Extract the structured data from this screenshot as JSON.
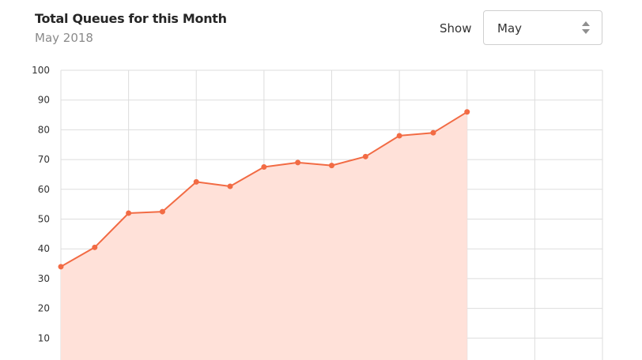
{
  "header": {
    "title": "Total Queues for this Month",
    "subtitle": "May 2018"
  },
  "filter": {
    "label": "Show",
    "selected_month": "May",
    "icon": "updown-arrows-icon"
  },
  "colors": {
    "line": "#f26b44",
    "fill": "#ffe1d9",
    "grid": "#dddddd"
  },
  "chart_data": {
    "type": "area",
    "title": "Total Queues for this Month",
    "subtitle": "May 2018",
    "xlabel": "",
    "ylabel": "",
    "ylim": [
      0,
      100
    ],
    "yticks": [
      10,
      20,
      30,
      40,
      50,
      60,
      70,
      80,
      90,
      100
    ],
    "x": [
      0,
      1,
      2,
      3,
      4,
      5,
      6,
      7,
      8,
      9,
      10,
      11,
      12
    ],
    "xlim": [
      0,
      16
    ],
    "values": [
      34,
      40.5,
      52,
      52.5,
      62.5,
      61,
      67.5,
      69,
      68,
      71,
      78,
      79,
      86
    ],
    "grid": true,
    "legend": "none"
  }
}
